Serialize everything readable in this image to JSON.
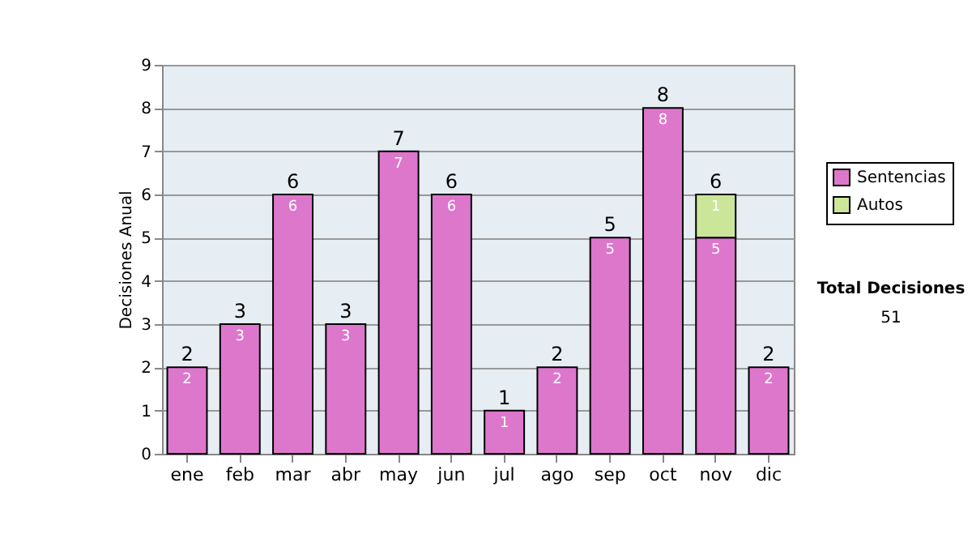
{
  "chart_data": {
    "type": "bar",
    "stacked": true,
    "ylabel": "Decisiones Anual",
    "categories": [
      "ene",
      "feb",
      "mar",
      "abr",
      "may",
      "jun",
      "jul",
      "ago",
      "sep",
      "oct",
      "nov",
      "dic"
    ],
    "series": [
      {
        "name": "Sentencias",
        "color": "#dd77cc",
        "values": [
          2,
          3,
          6,
          3,
          7,
          6,
          1,
          2,
          5,
          8,
          5,
          2
        ]
      },
      {
        "name": "Autos",
        "color": "#cce699",
        "values": [
          null,
          null,
          null,
          null,
          null,
          null,
          null,
          null,
          null,
          null,
          1,
          null
        ]
      }
    ],
    "ylim": [
      0,
      9
    ],
    "yticks": [
      0,
      1,
      2,
      3,
      4,
      5,
      6,
      7,
      8,
      9
    ],
    "grid": "y",
    "legend": "right",
    "data_labels": true,
    "totals": [
      "2",
      "3",
      "6",
      "3",
      "7",
      "6",
      "1",
      "2",
      "5",
      "8",
      "6",
      "2"
    ],
    "annotations": [
      "Total Decisiones",
      "51"
    ]
  }
}
